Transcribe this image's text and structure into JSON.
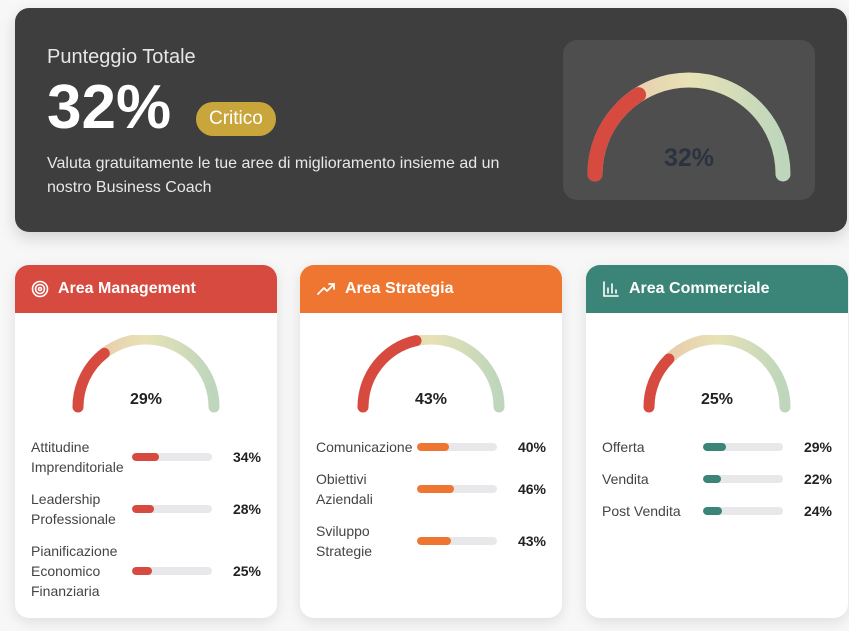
{
  "hero": {
    "label": "Punteggio Totale",
    "score": "32%",
    "value": 32,
    "badge": "Critico",
    "description": "Valuta gratuitamente le tue aree di miglioramento insieme ad un nostro Business Coach"
  },
  "colors": {
    "red": "#d64a3f",
    "orange": "#ee7630",
    "teal": "#3a8577",
    "badge": "#c9a63c"
  },
  "areas": [
    {
      "title": "Area Management",
      "icon": "target-icon",
      "color": "#d64a3f",
      "score": "29%",
      "value": 29,
      "items": [
        {
          "label": "Attitudine Imprenditoriale",
          "value": 34,
          "text": "34%"
        },
        {
          "label": "Leadership Professionale",
          "value": 28,
          "text": "28%"
        },
        {
          "label": "Pianificazione Economico Finanziaria",
          "value": 25,
          "text": "25%"
        }
      ]
    },
    {
      "title": "Area Strategia",
      "icon": "trending-up-icon",
      "color": "#ee7630",
      "score": "43%",
      "value": 43,
      "items": [
        {
          "label": "Comunicazione",
          "value": 40,
          "text": "40%"
        },
        {
          "label": "Obiettivi Aziendali",
          "value": 46,
          "text": "46%"
        },
        {
          "label": "Sviluppo Strategie",
          "value": 43,
          "text": "43%"
        }
      ]
    },
    {
      "title": "Area Commerciale",
      "icon": "bar-chart-icon",
      "color": "#3a8577",
      "score": "25%",
      "value": 25,
      "items": [
        {
          "label": "Offerta",
          "value": 29,
          "text": "29%"
        },
        {
          "label": "Vendita",
          "value": 22,
          "text": "22%"
        },
        {
          "label": "Post Vendita",
          "value": 24,
          "text": "24%"
        }
      ]
    }
  ]
}
